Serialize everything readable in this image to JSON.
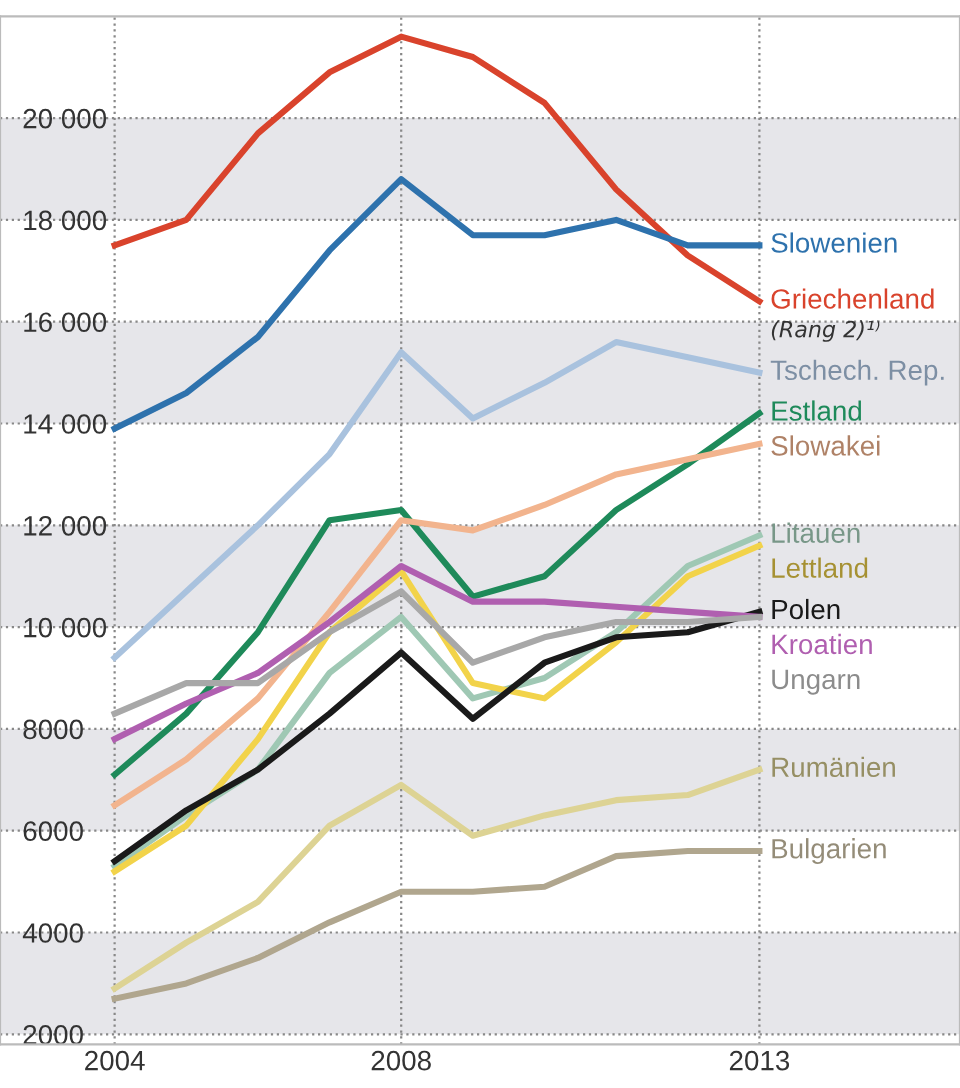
{
  "chart_data": {
    "type": "line",
    "x": [
      2004,
      2005,
      2006,
      2007,
      2008,
      2009,
      2010,
      2011,
      2012,
      2013
    ],
    "xlim": [
      2002.4,
      2015.8
    ],
    "xticks": [
      2004,
      2008,
      2013
    ],
    "ylim": [
      1800,
      22000
    ],
    "yticks": [
      2000,
      4000,
      6000,
      8000,
      {
        "value": 10000,
        "label": "10 000"
      },
      {
        "value": 12000,
        "label": "12 000"
      },
      {
        "value": 14000,
        "label": "14 000"
      },
      {
        "value": 16000,
        "label": "16 000"
      },
      {
        "value": 18000,
        "label": "18 000"
      },
      {
        "value": 20000,
        "label": "20 000"
      }
    ],
    "grid": true,
    "line_style": "solid",
    "marker": "none",
    "bands": [
      {
        "axis": "y",
        "from": 2000,
        "to": 4000,
        "color": "#e6e6ea"
      },
      {
        "axis": "y",
        "from": 6000,
        "to": 8000,
        "color": "#e6e6ea"
      },
      {
        "axis": "y",
        "from": 10000,
        "to": 12000,
        "color": "#e6e6ea"
      },
      {
        "axis": "y",
        "from": 14000,
        "to": 16000,
        "color": "#e6e6ea"
      },
      {
        "axis": "y",
        "from": 18000,
        "to": 20000,
        "color": "#e6e6ea"
      }
    ],
    "annotations": [
      "(Rang 2)¹⁾"
    ],
    "series": [
      {
        "name": "Griechenland",
        "color": "#d9432c",
        "values": [
          17500,
          18000,
          19700,
          20900,
          21600,
          21200,
          20300,
          18600,
          17300,
          16400
        ]
      },
      {
        "name": "Slowenien",
        "color": "#2e72ad",
        "values": [
          13900,
          14600,
          15700,
          17400,
          18800,
          17700,
          17700,
          18000,
          17500,
          17500
        ]
      },
      {
        "name": "Tschech. Rep.",
        "color": "#a9c2de",
        "values": [
          9400,
          10700,
          12000,
          13400,
          15400,
          14100,
          14800,
          15600,
          15300,
          15000
        ]
      },
      {
        "name": "Estland",
        "color": "#1e8a5a",
        "values": [
          7100,
          8300,
          9900,
          12100,
          12300,
          10600,
          11000,
          12300,
          13200,
          14200
        ]
      },
      {
        "name": "Slowakei",
        "color": "#f2b48e",
        "values": [
          6500,
          7400,
          8600,
          10300,
          12100,
          11900,
          12400,
          13000,
          13300,
          13600
        ]
      },
      {
        "name": "Litauen",
        "color": "#9fc8b4",
        "values": [
          5300,
          6300,
          7200,
          9100,
          10200,
          8600,
          9000,
          9900,
          11200,
          11800
        ]
      },
      {
        "name": "Lettland",
        "color": "#f2d34a",
        "values": [
          5200,
          6100,
          7800,
          9900,
          11100,
          8900,
          8600,
          9700,
          11000,
          11600
        ]
      },
      {
        "name": "Polen",
        "color": "#1a1a1a",
        "values": [
          5400,
          6400,
          7200,
          8300,
          9500,
          8200,
          9300,
          9800,
          9900,
          10300
        ]
      },
      {
        "name": "Kroatien",
        "color": "#b05fb0",
        "values": [
          7800,
          8500,
          9100,
          10100,
          11200,
          10500,
          10500,
          10400,
          10300,
          10200
        ]
      },
      {
        "name": "Ungarn",
        "color": "#a8a8a8",
        "values": [
          8300,
          8900,
          8900,
          9900,
          10700,
          9300,
          9800,
          10100,
          10100,
          10200
        ]
      },
      {
        "name": "Rumänien",
        "color": "#ddd394",
        "values": [
          2900,
          3800,
          4600,
          6100,
          6900,
          5900,
          6300,
          6600,
          6700,
          7200
        ]
      },
      {
        "name": "Bulgarien",
        "color": "#b0a68e",
        "values": [
          2700,
          3000,
          3500,
          4200,
          4800,
          4800,
          4900,
          5500,
          5600,
          5600
        ]
      }
    ]
  }
}
